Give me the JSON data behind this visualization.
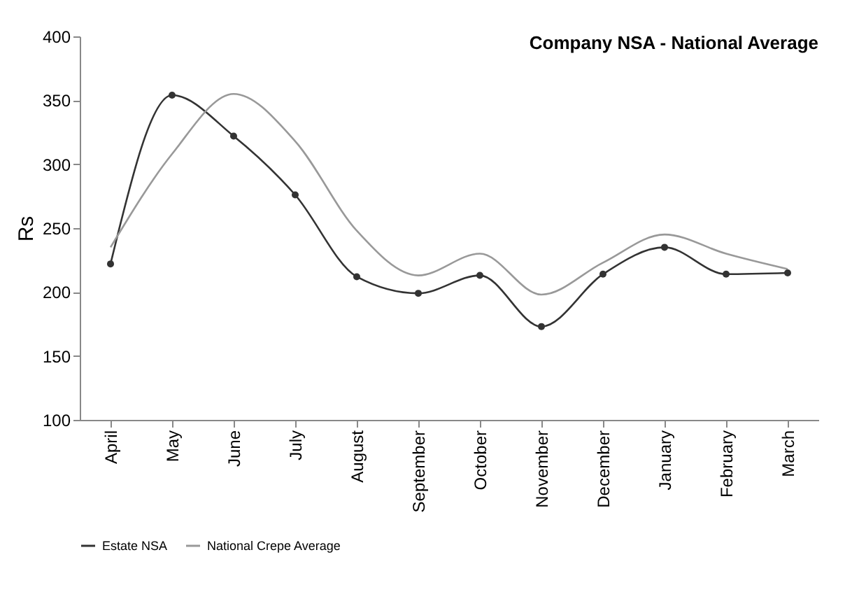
{
  "chart_data": {
    "type": "line",
    "title": "Company NSA - National Average",
    "ylabel": "Rs",
    "categories": [
      "April",
      "May",
      "June",
      "July",
      "August",
      "September",
      "October",
      "November",
      "December",
      "January",
      "February",
      "March"
    ],
    "series": [
      {
        "name": "Estate NSA",
        "color": "#333333",
        "marker": "circle",
        "values": [
          222,
          354,
          322,
          276,
          212,
          199,
          213,
          173,
          214,
          235,
          214,
          215
        ]
      },
      {
        "name": "National Crepe Average",
        "color": "#999999",
        "marker": "none",
        "values": [
          235,
          308,
          355,
          318,
          248,
          213,
          230,
          198,
          223,
          245,
          230,
          218
        ]
      }
    ],
    "ylim": [
      100,
      400
    ],
    "yticks": [
      100,
      150,
      200,
      250,
      300,
      350,
      400
    ],
    "grid": false,
    "legend": "bottom",
    "line_style": "solid"
  }
}
